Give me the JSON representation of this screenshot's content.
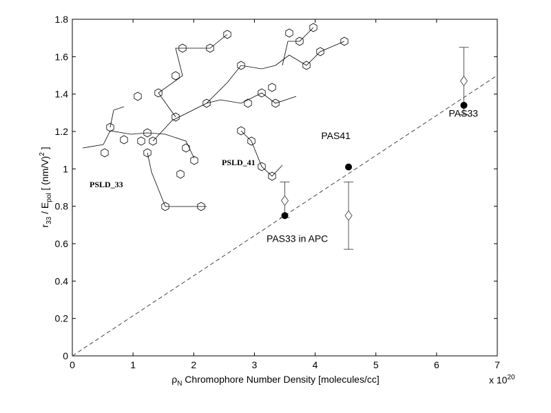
{
  "chart_data": {
    "type": "scatter",
    "title": "",
    "xlabel": {
      "symbol": "ρ",
      "sub": "N",
      "text": " Chromophore Number Density  [molecules/cc]"
    },
    "x_multiplier": "x 10",
    "x_multiplier_exp": "20",
    "ylabel": {
      "r": "r",
      "r_sub": "33",
      "slash": " / E",
      "e_sub": "pol",
      "unit": "   [ (nm/V)",
      "unit_exp": "2",
      "unit_close": " ]"
    },
    "xlim": [
      0,
      7
    ],
    "ylim": [
      0,
      1.8
    ],
    "xticks": [
      "0",
      "1",
      "2",
      "3",
      "4",
      "5",
      "6",
      "7"
    ],
    "yticks": [
      "0",
      "0.2",
      "0.4",
      "0.6",
      "0.8",
      "1",
      "1.2",
      "1.4",
      "1.6",
      "1.8"
    ],
    "grid": false,
    "series": [
      {
        "marker": "filled-circle",
        "color": "#000000",
        "points": [
          {
            "x": 3.5,
            "y": 0.75
          },
          {
            "x": 4.55,
            "y": 1.01
          },
          {
            "x": 6.45,
            "y": 1.34
          }
        ]
      },
      {
        "marker": "open-diamond",
        "color": "#555555",
        "points": [
          {
            "x": 3.5,
            "y": 0.83,
            "ylow": 0.74,
            "yhigh": 0.93
          },
          {
            "x": 4.55,
            "y": 0.75,
            "ylow": 0.57,
            "yhigh": 0.93
          },
          {
            "x": 6.45,
            "y": 1.47,
            "ylow": 1.29,
            "yhigh": 1.65
          }
        ]
      }
    ],
    "fit_line": {
      "style": "dashed",
      "x": [
        0,
        7
      ],
      "y": [
        0,
        1.5
      ]
    },
    "annotations": [
      {
        "text": "PAS33 in APC",
        "x": 3.2,
        "y": 0.61
      },
      {
        "text": "PAS41",
        "x": 4.1,
        "y": 1.16
      },
      {
        "text": "PAS33",
        "x": 6.2,
        "y": 1.28
      }
    ],
    "inset_labels": [
      "PSLD_33",
      "PSLD_41"
    ]
  }
}
